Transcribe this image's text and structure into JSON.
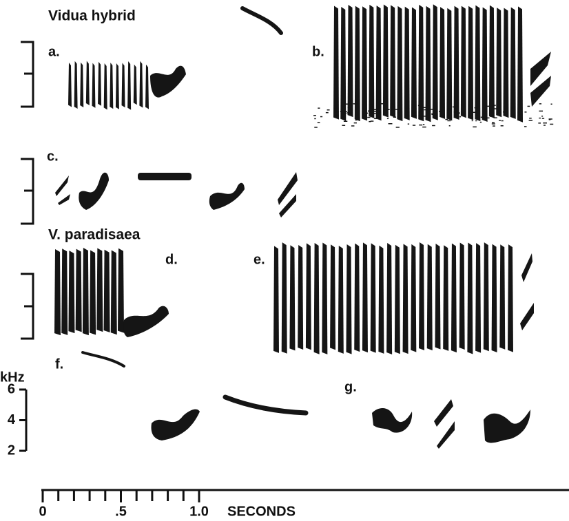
{
  "header": {
    "hybrid_title": "Vidua hybrid",
    "paradisaea_title": "V. paradisaea"
  },
  "panels": {
    "a": "a.",
    "b": "b.",
    "c": "c.",
    "d": "d.",
    "e": "e.",
    "f": "f.",
    "g": "g."
  },
  "frequency_axis": {
    "label": "kHz",
    "ticks": [
      6,
      4,
      2
    ]
  },
  "time_axis": {
    "label": "SECONDS",
    "ticks": [
      0,
      {
        "value": 0.5,
        "label": ".5"
      },
      {
        "value": 1.0,
        "label": "1.0"
      }
    ]
  }
}
